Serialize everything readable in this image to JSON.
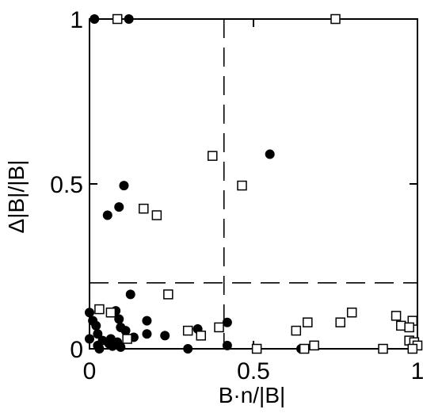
{
  "chart_data": {
    "type": "scatter",
    "title": "",
    "xlabel": "B·n/|B|",
    "ylabel": "Δ|B|/|B|",
    "xlim": [
      0,
      1
    ],
    "ylim": [
      0,
      1
    ],
    "x_ticks": [
      {
        "value": 0,
        "label": "0"
      },
      {
        "value": 0.5,
        "label": "0.5"
      },
      {
        "value": 1,
        "label": "1"
      }
    ],
    "y_ticks": [
      {
        "value": 0,
        "label": "0"
      },
      {
        "value": 0.5,
        "label": "0.5"
      },
      {
        "value": 1,
        "label": "1"
      }
    ],
    "grid": false,
    "legend": "none",
    "reference_lines": [
      {
        "orientation": "vertical",
        "x": 0.41,
        "style": "dashed"
      },
      {
        "orientation": "horizontal",
        "y": 0.2,
        "style": "dashed"
      }
    ],
    "series": [
      {
        "marker": "filled-circle",
        "color": "#000000",
        "points": [
          [
            0.015,
            1.0
          ],
          [
            0.12,
            1.0
          ],
          [
            0.55,
            0.59
          ],
          [
            0.105,
            0.495
          ],
          [
            0.09,
            0.43
          ],
          [
            0.055,
            0.405
          ],
          [
            0.125,
            0.165
          ],
          [
            0.0,
            0.11
          ],
          [
            0.08,
            0.115
          ],
          [
            0.09,
            0.09
          ],
          [
            0.01,
            0.085
          ],
          [
            0.175,
            0.085
          ],
          [
            0.02,
            0.07
          ],
          [
            0.42,
            0.08
          ],
          [
            0.095,
            0.065
          ],
          [
            0.33,
            0.06
          ],
          [
            0.11,
            0.055
          ],
          [
            0.175,
            0.045
          ],
          [
            0.23,
            0.04
          ],
          [
            0.025,
            0.045
          ],
          [
            0.135,
            0.035
          ],
          [
            0.0,
            0.03
          ],
          [
            0.065,
            0.03
          ],
          [
            0.04,
            0.025
          ],
          [
            0.085,
            0.02
          ],
          [
            0.06,
            0.015
          ],
          [
            0.025,
            0.01
          ],
          [
            0.07,
            0.008
          ],
          [
            0.095,
            0.005
          ],
          [
            0.42,
            0.01
          ],
          [
            0.3,
            0.0
          ],
          [
            0.03,
            0.0
          ],
          [
            0.645,
            0.0
          ]
        ]
      },
      {
        "marker": "open-square",
        "color": "#000000",
        "points": [
          [
            0.085,
            1.0
          ],
          [
            0.75,
            1.0
          ],
          [
            0.375,
            0.585
          ],
          [
            0.465,
            0.495
          ],
          [
            0.165,
            0.425
          ],
          [
            0.205,
            0.405
          ],
          [
            0.24,
            0.165
          ],
          [
            0.03,
            0.12
          ],
          [
            0.065,
            0.11
          ],
          [
            0.8,
            0.11
          ],
          [
            0.935,
            0.1
          ],
          [
            0.765,
            0.08
          ],
          [
            0.985,
            0.085
          ],
          [
            0.95,
            0.07
          ],
          [
            0.665,
            0.08
          ],
          [
            0.975,
            0.065
          ],
          [
            0.395,
            0.065
          ],
          [
            0.3,
            0.055
          ],
          [
            0.63,
            0.055
          ],
          [
            0.34,
            0.04
          ],
          [
            0.115,
            0.03
          ],
          [
            0.975,
            0.025
          ],
          [
            0.99,
            0.02
          ],
          [
            1.0,
            0.01
          ],
          [
            0.685,
            0.01
          ],
          [
            0.51,
            0.0
          ],
          [
            0.655,
            0.0
          ],
          [
            0.985,
            0.0
          ],
          [
            0.895,
            0.0
          ]
        ]
      }
    ]
  }
}
